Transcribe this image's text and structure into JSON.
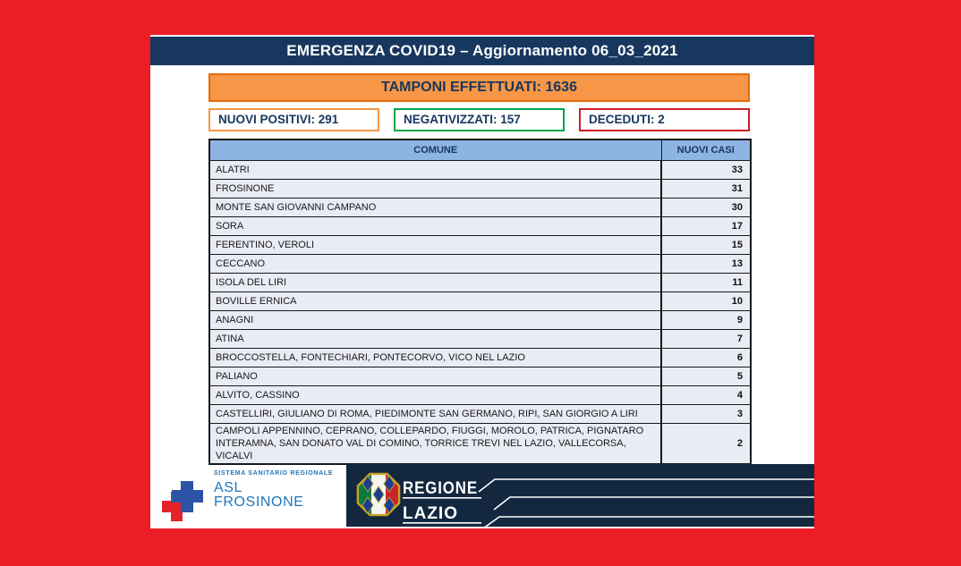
{
  "page": {
    "background_color": "#EC1D25",
    "card_color": "#FFFFFF"
  },
  "header": {
    "title": "EMERGENZA COVID19 – Aggiornamento 06_03_2021",
    "bg_color": "#17375E",
    "text_color": "#FFFFFF"
  },
  "tamponi": {
    "label": "TAMPONI EFFETTUATI: 1636",
    "bg_color": "#F79646",
    "border_color": "#E36C0A",
    "text_color": "#17375E"
  },
  "stats": [
    {
      "label": "NUOVI POSITIVI: 291",
      "border_color": "#F79646"
    },
    {
      "label": "NEGATIVIZZATI: 157",
      "border_color": "#00A550"
    },
    {
      "label": "DECEDUTI: 2",
      "border_color": "#CC1F26"
    }
  ],
  "table": {
    "columns": [
      "COMUNE",
      "NUOVI CASI"
    ],
    "header_bg": "#8DB4E2",
    "row_bg": "#E9EBF5",
    "rows": [
      {
        "comune": "ALATRI",
        "nuovi_casi": "33"
      },
      {
        "comune": "FROSINONE",
        "nuovi_casi": "31"
      },
      {
        "comune": "MONTE SAN GIOVANNI CAMPANO",
        "nuovi_casi": "30"
      },
      {
        "comune": "SORA",
        "nuovi_casi": "17"
      },
      {
        "comune": "FERENTINO, VEROLI",
        "nuovi_casi": "15"
      },
      {
        "comune": "CECCANO",
        "nuovi_casi": "13"
      },
      {
        "comune": "ISOLA DEL LIRI",
        "nuovi_casi": "11"
      },
      {
        "comune": "BOVILLE ERNICA",
        "nuovi_casi": "10"
      },
      {
        "comune": "ANAGNI",
        "nuovi_casi": "9"
      },
      {
        "comune": "ATINA",
        "nuovi_casi": "7"
      },
      {
        "comune": "BROCCOSTELLA, FONTECHIARI, PONTECORVO, VICO NEL LAZIO",
        "nuovi_casi": "6"
      },
      {
        "comune": "PALIANO",
        "nuovi_casi": "5"
      },
      {
        "comune": "ALVITO, CASSINO",
        "nuovi_casi": "4"
      },
      {
        "comune": "CASTELLIRI, GIULIANO DI ROMA, PIEDIMONTE SAN GERMANO, RIPI, SAN GIORGIO A LIRI",
        "nuovi_casi": "3"
      },
      {
        "comune": "CAMPOLI APPENNINO, CEPRANO, COLLEPARDO, FIUGGI, MOROLO, PATRICA, PIGNATARO INTERAMNA, SAN DONATO VAL DI COMINO, TORRICE TREVI NEL LAZIO, VALLECORSA, VICALVI",
        "nuovi_casi": "2"
      }
    ]
  },
  "footer": {
    "asl": {
      "small_label": "SISTEMA SANITARIO REGIONALE",
      "line1": "ASL",
      "line2": "FROSINONE",
      "text_color": "#2176BC",
      "cross_blue": "#2C53A5",
      "cross_red": "#E42229"
    },
    "region": {
      "line1": "REGIONE",
      "line2": "LAZIO",
      "bar_color": "#13283F"
    }
  }
}
